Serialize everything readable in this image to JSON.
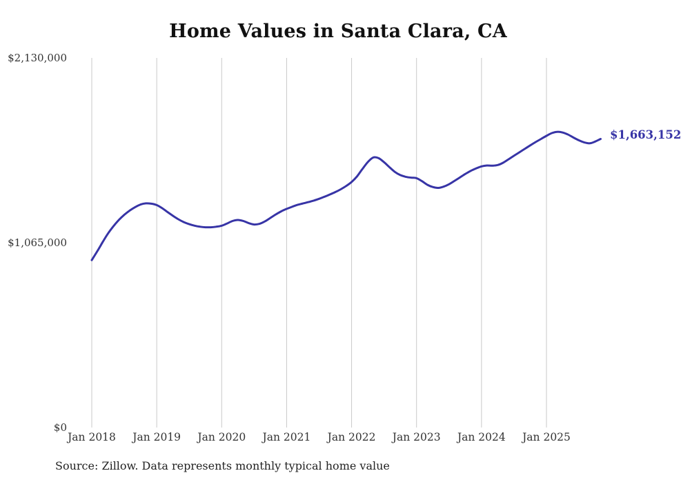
{
  "title": "Home Values in Santa Clara, CA",
  "source": "Source: Zillow. Data represents monthly typical home value",
  "end_label": "$1,663,152",
  "colors": {
    "line": "#3734a6",
    "grid": "#c9c9c9",
    "axis_text": "#333333",
    "end_label": "#3734a6"
  },
  "y_axis": {
    "ticks": [
      {
        "label": "$2,130,000",
        "value": 2130000
      },
      {
        "label": "$1,065,000",
        "value": 1065000
      },
      {
        "label": "$0",
        "value": 0
      }
    ]
  },
  "x_axis": {
    "ticks": [
      "Jan 2018",
      "Jan 2019",
      "Jan 2020",
      "Jan 2021",
      "Jan 2022",
      "Jan 2023",
      "Jan 2024",
      "Jan 2025"
    ]
  },
  "chart_data": {
    "type": "line",
    "title": "Home Values in Santa Clara, CA",
    "xlabel": "",
    "ylabel": "",
    "ylim": [
      0,
      2130000
    ],
    "grid": "vertical-only",
    "legend": "none",
    "series_name": "Typical home value",
    "start_month": "2018-01",
    "end_month": "2025-11",
    "months_per_tick": 12,
    "values": [
      965000,
      1015000,
      1068000,
      1118000,
      1160000,
      1196000,
      1226000,
      1250000,
      1270000,
      1285000,
      1292000,
      1290000,
      1282000,
      1264000,
      1242000,
      1220000,
      1200000,
      1184000,
      1172000,
      1163000,
      1157000,
      1154000,
      1154000,
      1157000,
      1163000,
      1176000,
      1190000,
      1196000,
      1190000,
      1178000,
      1170000,
      1174000,
      1188000,
      1208000,
      1228000,
      1246000,
      1260000,
      1272000,
      1283000,
      1291000,
      1299000,
      1308000,
      1318000,
      1330000,
      1343000,
      1357000,
      1373000,
      1392000,
      1415000,
      1447000,
      1490000,
      1530000,
      1556000,
      1552000,
      1529000,
      1500000,
      1473000,
      1455000,
      1445000,
      1440000,
      1437000,
      1420000,
      1399000,
      1386000,
      1381000,
      1388000,
      1402000,
      1421000,
      1441000,
      1461000,
      1479000,
      1493000,
      1505000,
      1510000,
      1509000,
      1513000,
      1526000,
      1546000,
      1566000,
      1586000,
      1606000,
      1626000,
      1645000,
      1663000,
      1681000,
      1697000,
      1704000,
      1700000,
      1688000,
      1671000,
      1655000,
      1643000,
      1638000,
      1648000,
      1663152
    ],
    "final_value": 1663152
  }
}
